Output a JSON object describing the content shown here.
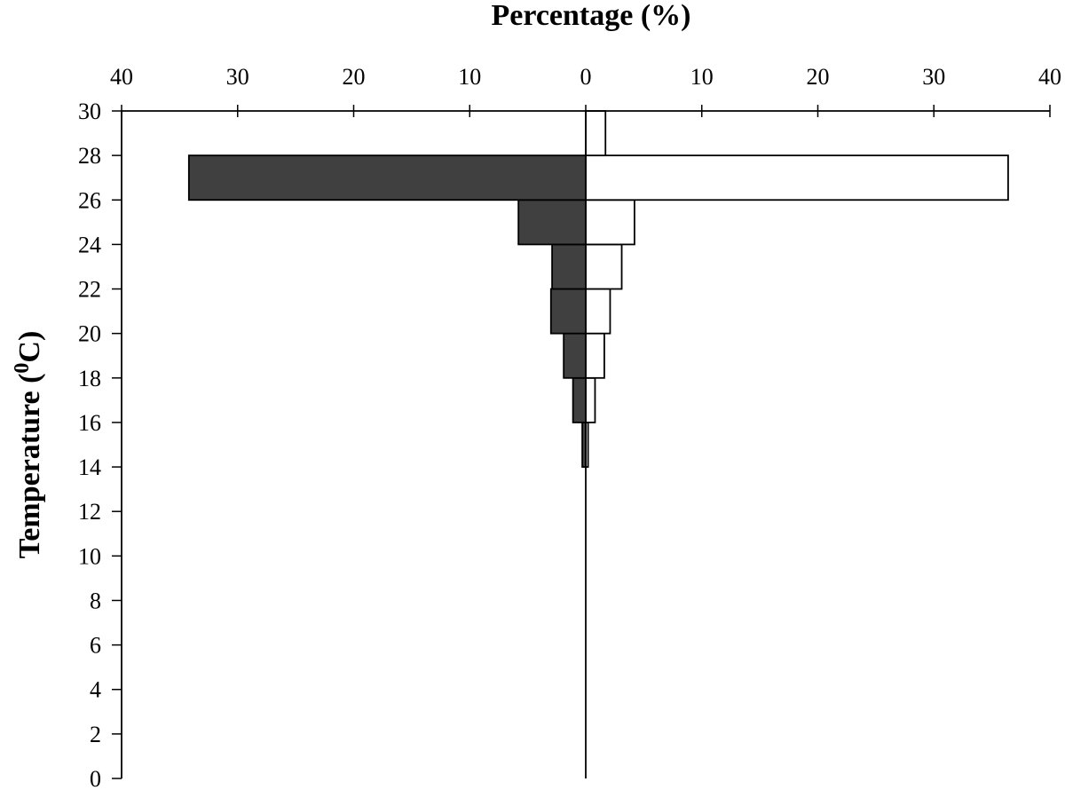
{
  "chart_data": {
    "type": "bar",
    "orientation": "horizontal-butterfly",
    "xlabel": "Percentage (%)",
    "ylabel_text": "Temperature (",
    "ylabel_superscript": "0",
    "ylabel_unit": "C)",
    "xlim": [
      -40,
      40
    ],
    "ylim": [
      0,
      30
    ],
    "x_ticks": [
      -40,
      -30,
      -20,
      -10,
      0,
      10,
      20,
      30,
      40
    ],
    "x_tick_labels": [
      "40",
      "30",
      "20",
      "10",
      "0",
      "10",
      "20",
      "30",
      "40"
    ],
    "y_ticks": [
      0,
      2,
      4,
      6,
      8,
      10,
      12,
      14,
      16,
      18,
      20,
      22,
      24,
      26,
      28,
      30
    ],
    "y_tick_labels": [
      "0",
      "2",
      "4",
      "6",
      "8",
      "10",
      "12",
      "14",
      "16",
      "18",
      "20",
      "22",
      "24",
      "26",
      "28",
      "30"
    ],
    "bins": [
      [
        0,
        2
      ],
      [
        2,
        4
      ],
      [
        4,
        6
      ],
      [
        6,
        8
      ],
      [
        8,
        10
      ],
      [
        10,
        12
      ],
      [
        12,
        14
      ],
      [
        14,
        16
      ],
      [
        16,
        18
      ],
      [
        18,
        20
      ],
      [
        20,
        22
      ],
      [
        22,
        24
      ],
      [
        24,
        26
      ],
      [
        26,
        28
      ],
      [
        28,
        30
      ]
    ],
    "series": [
      {
        "side": "left",
        "color": "#404040",
        "values": [
          0,
          0,
          0,
          0,
          0,
          0,
          0,
          0.3,
          1.1,
          1.9,
          3.0,
          2.9,
          5.8,
          34.2,
          0
        ]
      },
      {
        "side": "right",
        "color": "#ffffff",
        "values": [
          0,
          0,
          0,
          0,
          0,
          0,
          0,
          0.2,
          0.8,
          1.6,
          2.1,
          3.1,
          4.2,
          36.4,
          1.7
        ]
      }
    ],
    "grid": false,
    "legend": "none"
  }
}
